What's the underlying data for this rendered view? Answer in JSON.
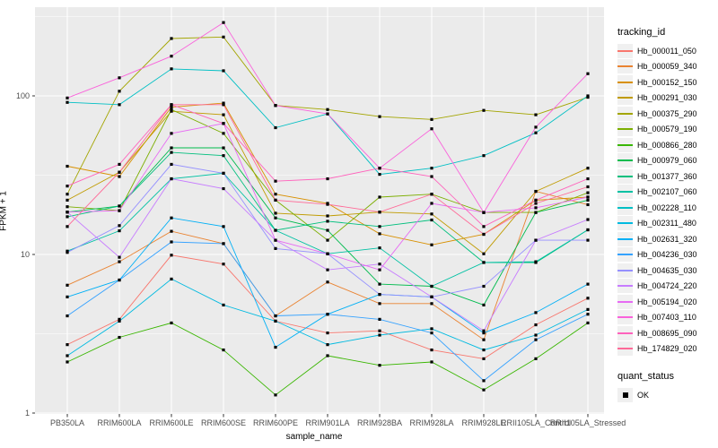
{
  "figure": {
    "xlabel": "sample_name",
    "ylabel": "FPKM + 1",
    "legend_title": "tracking_id",
    "legend2_title": "quant_status",
    "quant_status_value": "OK"
  },
  "chart_data": {
    "type": "line",
    "title": "",
    "xlabel": "sample_name",
    "ylabel": "FPKM + 1",
    "y_scale": "log10",
    "y_ticks": [
      1,
      10,
      100
    ],
    "y_tick_labels": [
      "1",
      "10",
      "100"
    ],
    "y_minor_breaks": [
      3.162,
      31.62,
      316.2
    ],
    "ylim": [
      1,
      363
    ],
    "grid": true,
    "panel_bg": "#EBEBEB",
    "grid_color": "#FFFFFF",
    "point_shape": "filled-square",
    "point_color": "#000000",
    "legend_position": "right",
    "legend_title": "tracking_id",
    "legend2_title": "quant_status",
    "quant_status_value": "OK",
    "x_categories": [
      "PB350LA",
      "RRIM600LA",
      "RRIM600LE",
      "RRIM600SE",
      "RRIM600PE",
      "RRIM901LA",
      "RRIM928BA",
      "RRIM928LA",
      "RRIM928LE",
      "RRII105LA_Control",
      "RRII105LA_Stressed"
    ],
    "series": [
      {
        "name": "Hb_000011_050",
        "color": "#F8766D",
        "values": [
          2.7,
          3.9,
          9.9,
          8.7,
          3.8,
          3.2,
          3.3,
          2.5,
          2.2,
          3.6,
          5.3
        ]
      },
      {
        "name": "Hb_000059_340",
        "color": "#EA8331",
        "values": [
          6.4,
          9.0,
          14.0,
          11.7,
          4.1,
          6.7,
          4.9,
          4.9,
          2.9,
          25.0,
          20.6
        ]
      },
      {
        "name": "Hb_000152_150",
        "color": "#D89000",
        "values": [
          36.0,
          31.0,
          85.0,
          90.0,
          24.0,
          21.0,
          13.5,
          11.5,
          13.4,
          22.0,
          23.0
        ]
      },
      {
        "name": "Hb_000291_030",
        "color": "#C09B00",
        "values": [
          22.0,
          33.0,
          80.0,
          76.0,
          18.2,
          17.5,
          18.5,
          18.0,
          10.1,
          25.0,
          35.0
        ]
      },
      {
        "name": "Hb_000375_290",
        "color": "#A3A500",
        "values": [
          24.0,
          107.0,
          230.0,
          235.0,
          87.0,
          82.0,
          74.0,
          71.0,
          81.0,
          76.0,
          98.0
        ]
      },
      {
        "name": "Hb_000579_190",
        "color": "#7CAE00",
        "values": [
          20.0,
          18.9,
          82.0,
          58.0,
          22.0,
          12.3,
          23.0,
          24.0,
          18.4,
          18.4,
          24.5
        ]
      },
      {
        "name": "Hb_000866_280",
        "color": "#39B600",
        "values": [
          2.1,
          3.0,
          3.7,
          2.5,
          1.3,
          2.3,
          2.0,
          2.1,
          1.4,
          2.2,
          3.7
        ]
      },
      {
        "name": "Hb_000979_060",
        "color": "#00BB4E",
        "values": [
          18.5,
          20.2,
          47.0,
          47.0,
          17.0,
          14.2,
          6.5,
          6.3,
          4.8,
          18.4,
          22.0
        ]
      },
      {
        "name": "Hb_001377_360",
        "color": "#00BF7D",
        "values": [
          17.3,
          20.2,
          44.0,
          42.0,
          14.2,
          16.2,
          15.0,
          16.5,
          8.9,
          8.9,
          14.3
        ]
      },
      {
        "name": "Hb_002107_060",
        "color": "#00C1A3",
        "values": [
          10.5,
          14.1,
          30.0,
          32.5,
          14.2,
          10.1,
          11.0,
          6.3,
          8.9,
          9.0,
          14.3
        ]
      },
      {
        "name": "Hb_002228_110",
        "color": "#00BFC4",
        "values": [
          91.0,
          88.0,
          148.0,
          144.0,
          63.0,
          77.0,
          32.0,
          35.0,
          42.0,
          58.5,
          100.0
        ]
      },
      {
        "name": "Hb_002311_480",
        "color": "#00BAE0",
        "values": [
          2.3,
          3.8,
          7.0,
          4.8,
          3.8,
          2.7,
          3.1,
          3.4,
          2.5,
          3.1,
          4.5
        ]
      },
      {
        "name": "Hb_002631_320",
        "color": "#00B0F6",
        "values": [
          5.4,
          6.9,
          17.0,
          15.0,
          2.6,
          4.2,
          5.6,
          5.4,
          3.2,
          4.3,
          6.5
        ]
      },
      {
        "name": "Hb_004236_030",
        "color": "#35A2FF",
        "values": [
          4.1,
          6.9,
          12.0,
          11.7,
          4.1,
          4.2,
          3.9,
          3.2,
          1.6,
          2.9,
          4.2
        ]
      },
      {
        "name": "Hb_004635_030",
        "color": "#9590FF",
        "values": [
          10.3,
          15.2,
          37.0,
          32.5,
          10.9,
          10.1,
          5.6,
          5.4,
          6.3,
          12.3,
          12.3
        ]
      },
      {
        "name": "Hb_004724_220",
        "color": "#C77CFF",
        "values": [
          18.5,
          9.6,
          30.0,
          26.0,
          12.3,
          8.0,
          8.7,
          5.4,
          3.3,
          12.3,
          16.6
        ]
      },
      {
        "name": "Hb_005194_020",
        "color": "#E76BF3",
        "values": [
          18.5,
          18.9,
          58.0,
          67.0,
          12.3,
          10.1,
          8.0,
          21.0,
          18.4,
          19.7,
          23.0
        ]
      },
      {
        "name": "Hb_007403_110",
        "color": "#FA62DB",
        "values": [
          97.0,
          130.0,
          178.0,
          290.0,
          87.0,
          77.0,
          35.0,
          62.0,
          18.4,
          63.5,
          138.0
        ]
      },
      {
        "name": "Hb_008695_090",
        "color": "#FF62BC",
        "values": [
          27.0,
          37.0,
          88.0,
          67.0,
          29.0,
          30.0,
          35.0,
          31.0,
          15.0,
          22.0,
          30.0
        ]
      },
      {
        "name": "Hb_174829_020",
        "color": "#FF6A98",
        "values": [
          15.0,
          33.0,
          88.0,
          88.0,
          22.0,
          20.7,
          18.5,
          24.0,
          13.4,
          21.0,
          26.7
        ]
      }
    ]
  }
}
